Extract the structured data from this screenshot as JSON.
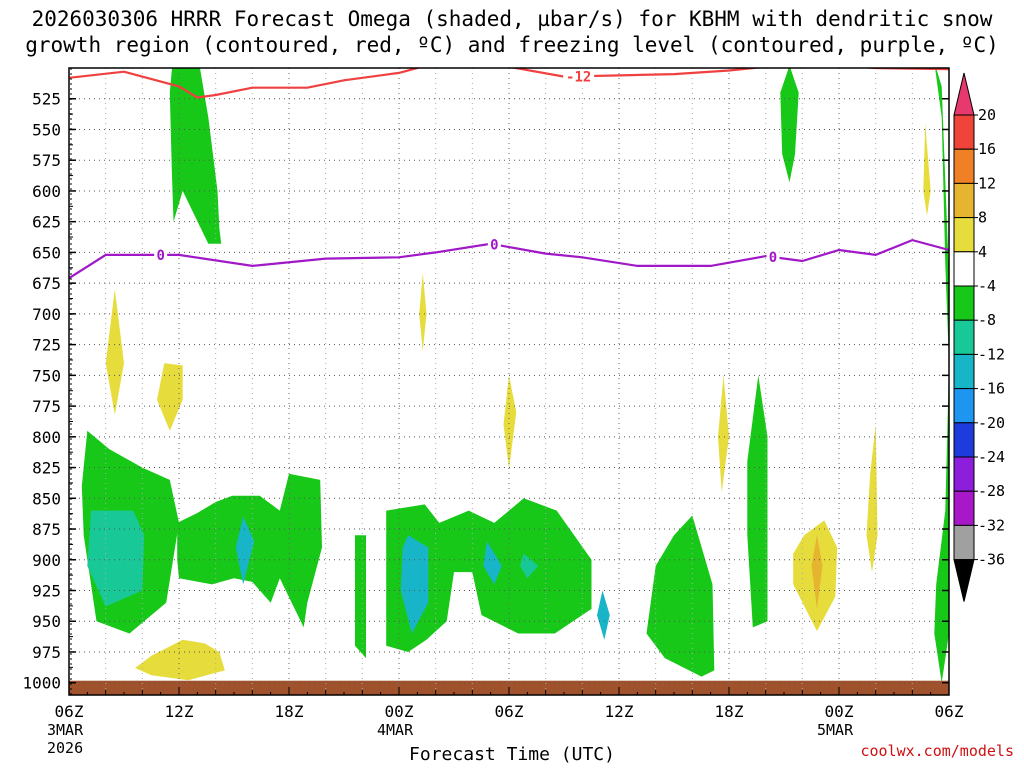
{
  "chart_data": {
    "type": "heatmap",
    "title_line1": "2026030306 HRRR Forecast Omega (shaded, µbar/s) for KBHM with dendritic snow",
    "title_line2": "growth region (contoured, red, ºC) and freezing level (contoured, purple, ºC)",
    "xlabel": "Forecast Time (UTC)",
    "credit": "coolwx.com/models",
    "ylim": [
      1010,
      500
    ],
    "y_ticks": [
      525,
      550,
      575,
      600,
      625,
      650,
      675,
      700,
      725,
      750,
      775,
      800,
      825,
      850,
      875,
      900,
      925,
      950,
      975,
      1000
    ],
    "x_hours_range": [
      0,
      48
    ],
    "x_ticks": [
      {
        "hour": 0,
        "label": "06Z",
        "date": "3MAR",
        "year": "2026"
      },
      {
        "hour": 6,
        "label": "12Z"
      },
      {
        "hour": 12,
        "label": "18Z"
      },
      {
        "hour": 18,
        "label": "00Z",
        "date": "4MAR"
      },
      {
        "hour": 24,
        "label": "06Z"
      },
      {
        "hour": 30,
        "label": "12Z"
      },
      {
        "hour": 36,
        "label": "18Z"
      },
      {
        "hour": 42,
        "label": "00Z",
        "date": "5MAR"
      },
      {
        "hour": 48,
        "label": "06Z"
      }
    ],
    "colorbar": {
      "levels": [
        20,
        16,
        12,
        8,
        4,
        -4,
        -8,
        -12,
        -16,
        -20,
        -24,
        -28,
        -32,
        -36
      ],
      "colors": [
        "#e8396e",
        "#f0433a",
        "#f08026",
        "#e6b530",
        "#e6dc3c",
        "#ffffff",
        "#18c818",
        "#18c896",
        "#18b4c8",
        "#1e96f0",
        "#1e3cdc",
        "#8c1edc",
        "#a818c8",
        "#a0a0a0",
        "#000000"
      ],
      "bands": [
        {
          "label": "20",
          "color": "#f0433a"
        },
        {
          "label": "16",
          "color": "#f08026"
        },
        {
          "label": "12",
          "color": "#e6b530"
        },
        {
          "label": "8",
          "color": "#e6dc3c"
        },
        {
          "label": "4",
          "color": "#ffffff"
        },
        {
          "label": "-4",
          "color": "#18c818"
        },
        {
          "label": "-8",
          "color": "#18c896"
        },
        {
          "label": "-12",
          "color": "#18b4c8"
        },
        {
          "label": "-16",
          "color": "#1e96f0"
        },
        {
          "label": "-20",
          "color": "#1e3cdc"
        },
        {
          "label": "-24",
          "color": "#8c1edc"
        },
        {
          "label": "-28",
          "color": "#a818c8"
        },
        {
          "label": "-32",
          "color": "#a0a0a0"
        }
      ]
    },
    "contours": {
      "dgz_minus12": {
        "label": "-12",
        "color": "#f04040",
        "points": [
          [
            0,
            508
          ],
          [
            3,
            503
          ],
          [
            6,
            515
          ],
          [
            7,
            524
          ],
          [
            8,
            522
          ],
          [
            10,
            516
          ],
          [
            13,
            516
          ],
          [
            15,
            510
          ],
          [
            18,
            504
          ],
          [
            20,
            496
          ],
          [
            24,
            499
          ],
          [
            27,
            507
          ],
          [
            33,
            505
          ],
          [
            36,
            502
          ],
          [
            40,
            496
          ],
          [
            44,
            500
          ],
          [
            48,
            501
          ]
        ]
      },
      "freezing_level_0": {
        "label": "0",
        "color": "#a018c8",
        "points": [
          [
            0,
            671
          ],
          [
            2,
            652
          ],
          [
            6,
            652
          ],
          [
            10,
            661
          ],
          [
            14,
            655
          ],
          [
            18,
            654
          ],
          [
            20,
            650
          ],
          [
            23,
            643
          ],
          [
            26,
            651
          ],
          [
            28,
            654
          ],
          [
            31,
            661
          ],
          [
            35,
            661
          ],
          [
            38,
            653
          ],
          [
            40,
            657
          ],
          [
            42,
            648
          ],
          [
            44,
            652
          ],
          [
            46,
            640
          ],
          [
            48,
            648
          ]
        ]
      }
    },
    "shaded_regions": [
      {
        "color": "#18c818",
        "points": [
          [
            5.8,
            470
          ],
          [
            6.8,
            470
          ],
          [
            7.6,
            540
          ],
          [
            8.1,
            600
          ],
          [
            8.2,
            630
          ],
          [
            8.3,
            643
          ],
          [
            7.6,
            643
          ],
          [
            6.2,
            600
          ],
          [
            5.7,
            625
          ],
          [
            5.6,
            580
          ],
          [
            5.5,
            520
          ]
        ]
      },
      {
        "color": "#18c818",
        "points": [
          [
            39.3,
            498
          ],
          [
            39.8,
            520
          ],
          [
            39.6,
            570
          ],
          [
            39.3,
            593
          ],
          [
            38.9,
            570
          ],
          [
            38.8,
            520
          ]
        ]
      },
      {
        "color": "#18c818",
        "points": [
          [
            47.2,
            495
          ],
          [
            47.6,
            540
          ],
          [
            47.8,
            660
          ],
          [
            48,
            740
          ],
          [
            47.8,
            860
          ],
          [
            47.3,
            920
          ],
          [
            47.2,
            960
          ],
          [
            47.6,
            1000
          ],
          [
            48,
            960
          ],
          [
            48,
            670
          ],
          [
            47.6,
            515
          ]
        ]
      },
      {
        "color": "#e6dc3c",
        "points": [
          [
            46.7,
            545
          ],
          [
            47,
            600
          ],
          [
            46.8,
            620
          ],
          [
            46.6,
            600
          ]
        ]
      },
      {
        "color": "#e6dc3c",
        "points": [
          [
            19.3,
            667
          ],
          [
            19.5,
            700
          ],
          [
            19.3,
            730
          ],
          [
            19.1,
            700
          ]
        ]
      },
      {
        "color": "#e6dc3c",
        "points": [
          [
            2.5,
            680
          ],
          [
            3,
            740
          ],
          [
            2.5,
            782
          ],
          [
            2,
            740
          ]
        ]
      },
      {
        "color": "#e6dc3c",
        "points": [
          [
            5.2,
            740
          ],
          [
            6.2,
            742
          ],
          [
            6.2,
            770
          ],
          [
            5.5,
            795
          ],
          [
            4.8,
            770
          ]
        ]
      },
      {
        "color": "#e6dc3c",
        "points": [
          [
            24,
            750
          ],
          [
            24.4,
            780
          ],
          [
            24,
            826
          ],
          [
            23.7,
            790
          ]
        ]
      },
      {
        "color": "#e6dc3c",
        "points": [
          [
            35.7,
            750
          ],
          [
            36,
            800
          ],
          [
            35.6,
            845
          ],
          [
            35.4,
            800
          ]
        ]
      },
      {
        "color": "#18c818",
        "points": [
          [
            37.6,
            750
          ],
          [
            38.1,
            800
          ],
          [
            38.1,
            950
          ],
          [
            37.3,
            955
          ],
          [
            37,
            880
          ],
          [
            37,
            820
          ]
        ]
      },
      {
        "color": "#e6dc3c",
        "points": [
          [
            44,
            790
          ],
          [
            44.1,
            880
          ],
          [
            43.8,
            910
          ],
          [
            43.5,
            880
          ],
          [
            43.7,
            830
          ]
        ]
      },
      {
        "color": "#18c818",
        "points": [
          [
            1,
            795
          ],
          [
            2.2,
            810
          ],
          [
            4,
            825
          ],
          [
            5.5,
            835
          ],
          [
            6,
            870
          ],
          [
            5.3,
            935
          ],
          [
            3.3,
            960
          ],
          [
            1.5,
            950
          ],
          [
            0.8,
            880
          ],
          [
            0.7,
            840
          ]
        ]
      },
      {
        "color": "#18c896",
        "points": [
          [
            1.2,
            860
          ],
          [
            3.5,
            860
          ],
          [
            4.1,
            880
          ],
          [
            4,
            925
          ],
          [
            2,
            938
          ],
          [
            1,
            905
          ]
        ]
      },
      {
        "color": "#18c818",
        "points": [
          [
            5.9,
            870
          ],
          [
            7,
            862
          ],
          [
            8,
            853
          ],
          [
            8.9,
            848
          ],
          [
            10.4,
            848
          ],
          [
            11.5,
            860
          ],
          [
            12,
            830
          ],
          [
            13.7,
            835
          ],
          [
            13.8,
            890
          ],
          [
            13,
            935
          ],
          [
            12.8,
            955
          ],
          [
            11.5,
            915
          ],
          [
            11,
            935
          ],
          [
            10,
            918
          ],
          [
            9,
            915
          ],
          [
            7.8,
            920
          ],
          [
            6,
            915
          ],
          [
            5.9,
            900
          ]
        ]
      },
      {
        "color": "#18b4c8",
        "points": [
          [
            9.5,
            865
          ],
          [
            10.1,
            885
          ],
          [
            9.5,
            920
          ],
          [
            9.1,
            890
          ]
        ]
      },
      {
        "color": "#18c818",
        "points": [
          [
            15.6,
            880
          ],
          [
            16.2,
            880
          ],
          [
            16.2,
            980
          ],
          [
            15.6,
            970
          ]
        ]
      },
      {
        "color": "#18c818",
        "points": [
          [
            17.3,
            860
          ],
          [
            19.4,
            855
          ],
          [
            20.2,
            870
          ],
          [
            21.8,
            860
          ],
          [
            23.2,
            870
          ],
          [
            24.8,
            850
          ],
          [
            26.6,
            860
          ],
          [
            28.5,
            900
          ],
          [
            28.5,
            940
          ],
          [
            26.5,
            960
          ],
          [
            24.5,
            960
          ],
          [
            22.5,
            945
          ],
          [
            22,
            910
          ],
          [
            21,
            910
          ],
          [
            20.6,
            950
          ],
          [
            19.5,
            965
          ],
          [
            18.5,
            975
          ],
          [
            17.3,
            970
          ]
        ]
      },
      {
        "color": "#18b4c8",
        "points": [
          [
            18.5,
            880
          ],
          [
            19.6,
            890
          ],
          [
            19.6,
            935
          ],
          [
            18.7,
            960
          ],
          [
            18.1,
            925
          ],
          [
            18.2,
            890
          ]
        ]
      },
      {
        "color": "#18b4c8",
        "points": [
          [
            22.8,
            885
          ],
          [
            23.6,
            905
          ],
          [
            23.2,
            920
          ],
          [
            22.6,
            905
          ]
        ]
      },
      {
        "color": "#18c896",
        "points": [
          [
            24.8,
            895
          ],
          [
            25.6,
            905
          ],
          [
            25,
            915
          ],
          [
            24.6,
            905
          ]
        ]
      },
      {
        "color": "#18b4c8",
        "points": [
          [
            29.1,
            925
          ],
          [
            29.5,
            945
          ],
          [
            29.2,
            965
          ],
          [
            28.8,
            945
          ]
        ]
      },
      {
        "color": "#18c818",
        "points": [
          [
            34,
            864
          ],
          [
            35.1,
            920
          ],
          [
            35.2,
            990
          ],
          [
            34.5,
            995
          ],
          [
            32.5,
            980
          ],
          [
            31.5,
            960
          ],
          [
            32,
            905
          ],
          [
            33,
            880
          ]
        ]
      },
      {
        "color": "#e6dc3c",
        "points": [
          [
            41.2,
            868
          ],
          [
            41.9,
            890
          ],
          [
            41.8,
            930
          ],
          [
            40.8,
            958
          ],
          [
            39.5,
            920
          ],
          [
            39.5,
            895
          ],
          [
            40.1,
            880
          ]
        ]
      },
      {
        "color": "#e6b530",
        "points": [
          [
            40.8,
            880
          ],
          [
            41.1,
            905
          ],
          [
            40.8,
            940
          ],
          [
            40.5,
            905
          ]
        ]
      },
      {
        "color": "#18c818",
        "points": [
          [
            47.8,
            895
          ],
          [
            48,
            940
          ],
          [
            47.8,
            960
          ],
          [
            47.5,
            930
          ]
        ]
      },
      {
        "color": "#e6dc3c",
        "points": [
          [
            4.5,
            978
          ],
          [
            6.2,
            965
          ],
          [
            7.4,
            968
          ],
          [
            8.2,
            975
          ],
          [
            8.5,
            990
          ],
          [
            6.5,
            998
          ],
          [
            4.5,
            994
          ],
          [
            3.6,
            988
          ]
        ]
      }
    ],
    "surface_band": {
      "color": "#a0522d",
      "from_hpa": 1000,
      "to_hpa": 1010
    }
  }
}
